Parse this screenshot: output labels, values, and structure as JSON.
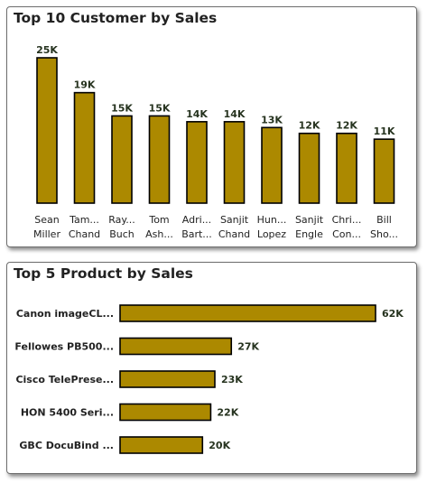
{
  "colors": {
    "bar": "#ac8900",
    "label": "#26331f"
  },
  "panels": {
    "customers": {
      "title": "Top 10 Customer by Sales"
    },
    "products": {
      "title": "Top 5 Product by Sales"
    }
  },
  "chart_data": [
    {
      "type": "bar",
      "title": "Top 10 Customer by Sales",
      "categories": [
        [
          "Sean",
          "Miller"
        ],
        [
          "Tam...",
          "Chand"
        ],
        [
          "Ray...",
          "Buch"
        ],
        [
          "Tom",
          "Ash..."
        ],
        [
          "Adri...",
          "Bart..."
        ],
        [
          "Sanjit",
          "Chand"
        ],
        [
          "Hun...",
          "Lopez"
        ],
        [
          "Sanjit",
          "Engle"
        ],
        [
          "Chri...",
          "Con..."
        ],
        [
          "Bill",
          "Sho..."
        ]
      ],
      "values": [
        25000,
        19000,
        15000,
        15000,
        14000,
        14000,
        13000,
        12000,
        12000,
        11000
      ],
      "data_labels": [
        "25K",
        "19K",
        "15K",
        "15K",
        "14K",
        "14K",
        "13K",
        "12K",
        "12K",
        "11K"
      ],
      "ylim": [
        0,
        25000
      ],
      "grid": false
    },
    {
      "type": "bar",
      "orientation": "horizontal",
      "title": "Top 5 Product by Sales",
      "categories": [
        "Canon imageCL...",
        "Fellowes PB500...",
        "Cisco TelePrese...",
        "HON 5400 Seri...",
        "GBC DocuBind ..."
      ],
      "values": [
        62000,
        27000,
        23000,
        22000,
        20000
      ],
      "data_labels": [
        "62K",
        "27K",
        "23K",
        "22K",
        "20K"
      ],
      "xlim": [
        0,
        62000
      ],
      "grid": false
    }
  ]
}
